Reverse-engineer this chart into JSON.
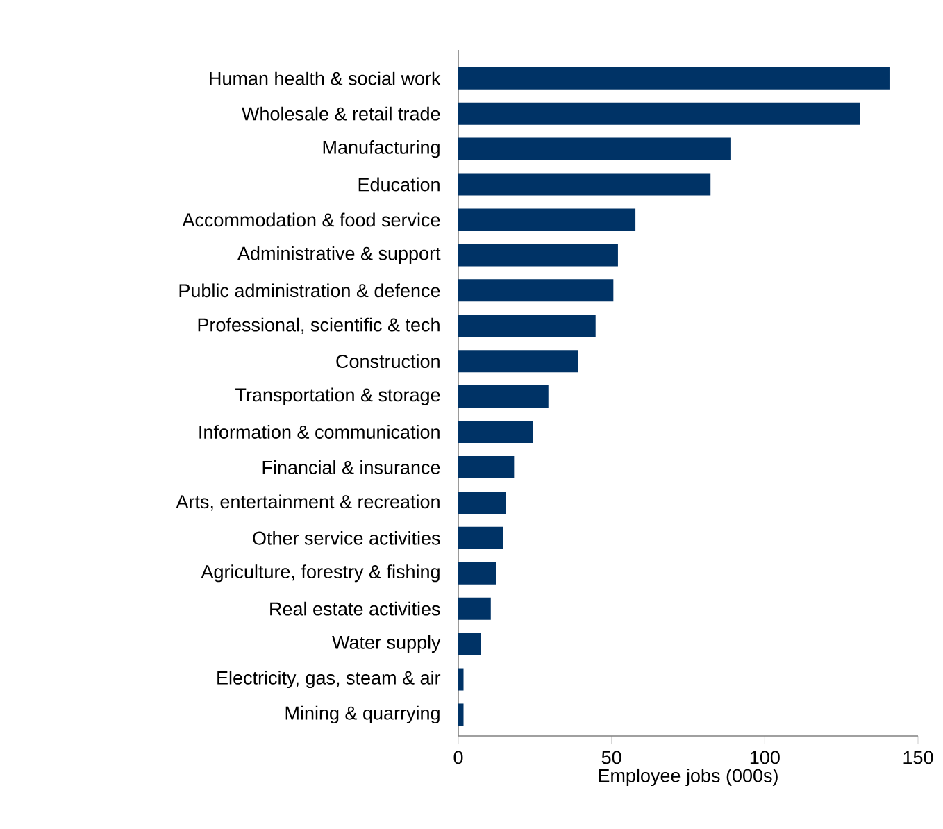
{
  "chart_data": {
    "type": "bar",
    "orientation": "horizontal",
    "xlabel": "Employee jobs (000s)",
    "categories": [
      "Human health & social work",
      "Wholesale & retail trade",
      "Manufacturing",
      "Education",
      "Accommodation & food service",
      "Administrative & support",
      "Public administration & defence",
      "Professional, scientific & tech",
      "Construction",
      "Transportation & storage",
      "Information & communication",
      "Financial & insurance",
      "Arts, entertainment & recreation",
      "Other service activities",
      "Agriculture, forestry & fishing",
      "Real estate activities",
      "Water supply",
      "Electricity, gas, steam & air",
      "Mining & quarrying"
    ],
    "values": [
      140.7,
      131,
      88.8,
      82.3,
      57.8,
      52.1,
      50.6,
      44.8,
      39,
      29.4,
      24.4,
      18.2,
      15.6,
      14.7,
      12.3,
      10.6,
      7.4,
      1.7,
      1.7
    ],
    "color": "#003366",
    "xlim": [
      0,
      150
    ],
    "xticks": [
      0,
      50,
      100,
      150
    ]
  }
}
